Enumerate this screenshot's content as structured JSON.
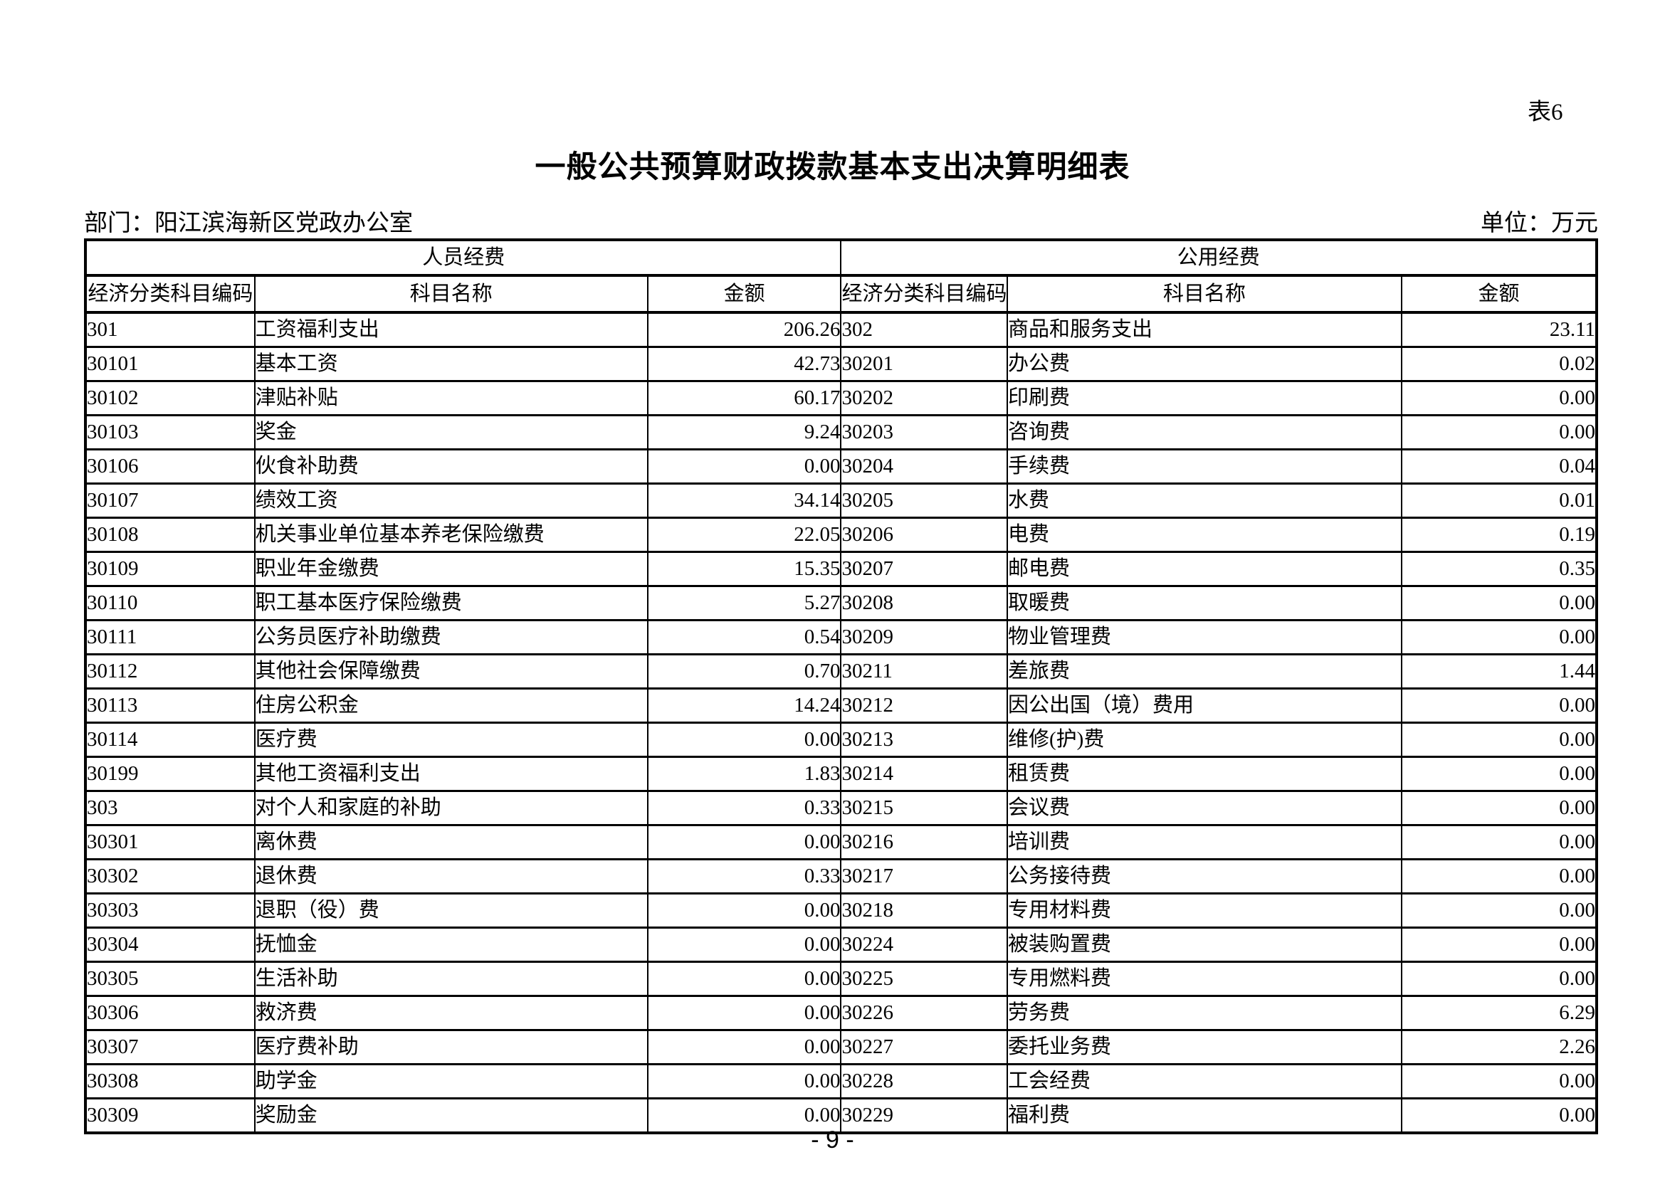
{
  "page": {
    "sheet_label": "表6",
    "title": "一般公共预算财政拨款基本支出决算明细表",
    "department_label": "部门：阳江滨海新区党政办公室",
    "unit_label": "单位：万元",
    "page_number": "- 9 -"
  },
  "table": {
    "left": {
      "group_header": "人员经费",
      "columns": [
        "经济分类科目编码",
        "科目名称",
        "金额"
      ],
      "rows": [
        {
          "code": "301",
          "name": "工资福利支出",
          "amount": "206.26"
        },
        {
          "code": "30101",
          "name": "基本工资",
          "amount": "42.73"
        },
        {
          "code": "30102",
          "name": "津贴补贴",
          "amount": "60.17"
        },
        {
          "code": "30103",
          "name": "奖金",
          "amount": "9.24"
        },
        {
          "code": "30106",
          "name": "伙食补助费",
          "amount": "0.00"
        },
        {
          "code": "30107",
          "name": "绩效工资",
          "amount": "34.14"
        },
        {
          "code": "30108",
          "name": "机关事业单位基本养老保险缴费",
          "amount": "22.05"
        },
        {
          "code": "30109",
          "name": "职业年金缴费",
          "amount": "15.35"
        },
        {
          "code": "30110",
          "name": "职工基本医疗保险缴费",
          "amount": "5.27"
        },
        {
          "code": "30111",
          "name": "公务员医疗补助缴费",
          "amount": "0.54"
        },
        {
          "code": "30112",
          "name": "其他社会保障缴费",
          "amount": "0.70"
        },
        {
          "code": "30113",
          "name": "住房公积金",
          "amount": "14.24"
        },
        {
          "code": "30114",
          "name": "医疗费",
          "amount": "0.00"
        },
        {
          "code": "30199",
          "name": "其他工资福利支出",
          "amount": "1.83"
        },
        {
          "code": "303",
          "name": "对个人和家庭的补助",
          "amount": "0.33"
        },
        {
          "code": "30301",
          "name": "离休费",
          "amount": "0.00"
        },
        {
          "code": "30302",
          "name": "退休费",
          "amount": "0.33"
        },
        {
          "code": "30303",
          "name": "退职（役）费",
          "amount": "0.00"
        },
        {
          "code": "30304",
          "name": "抚恤金",
          "amount": "0.00"
        },
        {
          "code": "30305",
          "name": "生活补助",
          "amount": "0.00"
        },
        {
          "code": "30306",
          "name": "救济费",
          "amount": "0.00"
        },
        {
          "code": "30307",
          "name": "医疗费补助",
          "amount": "0.00"
        },
        {
          "code": "30308",
          "name": "助学金",
          "amount": "0.00"
        },
        {
          "code": "30309",
          "name": "奖励金",
          "amount": "0.00"
        }
      ]
    },
    "right": {
      "group_header": "公用经费",
      "columns": [
        "经济分类科目编码",
        "科目名称",
        "金额"
      ],
      "rows": [
        {
          "code": "302",
          "name": "商品和服务支出",
          "amount": "23.11"
        },
        {
          "code": "30201",
          "name": "办公费",
          "amount": "0.02"
        },
        {
          "code": "30202",
          "name": "印刷费",
          "amount": "0.00"
        },
        {
          "code": "30203",
          "name": "咨询费",
          "amount": "0.00"
        },
        {
          "code": "30204",
          "name": "手续费",
          "amount": "0.04"
        },
        {
          "code": "30205",
          "name": "水费",
          "amount": "0.01"
        },
        {
          "code": "30206",
          "name": "电费",
          "amount": "0.19"
        },
        {
          "code": "30207",
          "name": "邮电费",
          "amount": "0.35"
        },
        {
          "code": "30208",
          "name": "取暖费",
          "amount": "0.00"
        },
        {
          "code": "30209",
          "name": "物业管理费",
          "amount": "0.00"
        },
        {
          "code": "30211",
          "name": "差旅费",
          "amount": "1.44"
        },
        {
          "code": "30212",
          "name": "因公出国（境）费用",
          "amount": "0.00"
        },
        {
          "code": "30213",
          "name": "维修(护)费",
          "amount": "0.00"
        },
        {
          "code": "30214",
          "name": "租赁费",
          "amount": "0.00"
        },
        {
          "code": "30215",
          "name": "会议费",
          "amount": "0.00"
        },
        {
          "code": "30216",
          "name": "培训费",
          "amount": "0.00"
        },
        {
          "code": "30217",
          "name": "公务接待费",
          "amount": "0.00"
        },
        {
          "code": "30218",
          "name": "专用材料费",
          "amount": "0.00"
        },
        {
          "code": "30224",
          "name": "被装购置费",
          "amount": "0.00"
        },
        {
          "code": "30225",
          "name": "专用燃料费",
          "amount": "0.00"
        },
        {
          "code": "30226",
          "name": "劳务费",
          "amount": "6.29"
        },
        {
          "code": "30227",
          "name": "委托业务费",
          "amount": "2.26"
        },
        {
          "code": "30228",
          "name": "工会经费",
          "amount": "0.00"
        },
        {
          "code": "30229",
          "name": "福利费",
          "amount": "0.00"
        }
      ]
    }
  }
}
